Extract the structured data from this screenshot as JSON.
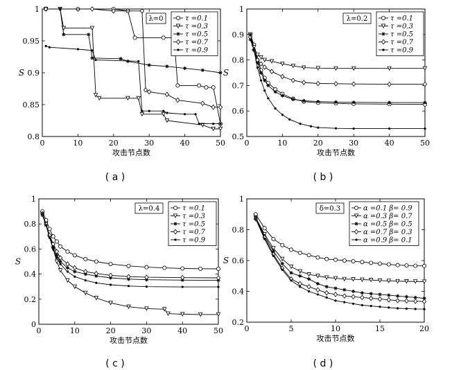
{
  "chart_data": [
    {
      "id": "a",
      "type": "line",
      "caption": "( a )",
      "box_label": "λ=0",
      "xlabel": "攻击节点数",
      "ylabel": "S",
      "xlim": [
        0,
        50
      ],
      "ylim": [
        0.8,
        1
      ],
      "xticks": [
        0,
        10,
        20,
        30,
        40,
        50
      ],
      "yticks": [
        0.8,
        0.85,
        0.9,
        0.95,
        1
      ],
      "ytick_labels": [
        "0.8",
        "0.85",
        "0.9",
        "0.95",
        "1"
      ],
      "legend_position": "top-right",
      "series": [
        {
          "name": "τ =0.1",
          "marker": "circle",
          "x": [
            1,
            10,
            20,
            24,
            26,
            34,
            37,
            38,
            44,
            46,
            48,
            50
          ],
          "y": [
            1,
            1,
            1,
            0.997,
            0.955,
            0.955,
            0.955,
            0.88,
            0.88,
            0.877,
            0.877,
            0.82
          ]
        },
        {
          "name": "τ =0.3",
          "marker": "triangle-down",
          "x": [
            1,
            5,
            6,
            14,
            15,
            16,
            24,
            27,
            28,
            34,
            35,
            45,
            48,
            50
          ],
          "y": [
            1,
            1,
            0.97,
            0.97,
            0.865,
            0.86,
            0.86,
            0.86,
            0.835,
            0.835,
            0.825,
            0.818,
            0.812,
            0.812
          ]
        },
        {
          "name": "τ =0.5",
          "marker": "star",
          "x": [
            1,
            5,
            6,
            13,
            14,
            22,
            24,
            30,
            35,
            40,
            45,
            50
          ],
          "y": [
            1,
            1,
            0.96,
            0.96,
            0.923,
            0.922,
            0.918,
            0.912,
            0.91,
            0.907,
            0.904,
            0.9
          ]
        },
        {
          "name": "τ =0.7",
          "marker": "diamond",
          "x": [
            1,
            14,
            20,
            28,
            29,
            30,
            35,
            38,
            45,
            48,
            50
          ],
          "y": [
            1,
            1,
            0.997,
            0.997,
            0.873,
            0.87,
            0.866,
            0.857,
            0.852,
            0.846,
            0.846
          ]
        },
        {
          "name": "τ =0.9",
          "marker": "dot",
          "x": [
            1,
            2,
            10,
            14,
            15,
            27,
            28,
            30,
            34,
            35,
            40,
            43,
            44,
            48,
            50
          ],
          "y": [
            0.942,
            0.94,
            0.937,
            0.935,
            0.92,
            0.918,
            0.84,
            0.84,
            0.84,
            0.837,
            0.835,
            0.835,
            0.82,
            0.82,
            0.82
          ]
        }
      ]
    },
    {
      "id": "b",
      "type": "line",
      "caption": "( b )",
      "box_label": "λ=0.2",
      "xlabel": "攻击节点数",
      "ylabel": "S",
      "xlim": [
        0,
        50
      ],
      "ylim": [
        0.5,
        1
      ],
      "xticks": [
        0,
        10,
        20,
        30,
        40,
        50
      ],
      "yticks": [
        0.5,
        0.6,
        0.7,
        0.8,
        0.9,
        1
      ],
      "ytick_labels": [
        "0.5",
        "0.6",
        "0.7",
        "0.8",
        "0.9",
        "1"
      ],
      "legend_position": "top-right",
      "series": [
        {
          "name": "τ =0.1",
          "marker": "circle",
          "x": [
            1,
            2,
            3,
            4,
            5,
            6,
            8,
            10,
            13,
            16,
            20,
            25,
            30,
            40,
            50
          ],
          "y": [
            0.9,
            0.86,
            0.8,
            0.76,
            0.73,
            0.71,
            0.685,
            0.667,
            0.648,
            0.637,
            0.632,
            0.63,
            0.628,
            0.627,
            0.626
          ]
        },
        {
          "name": "τ =0.3",
          "marker": "triangle-down",
          "x": [
            1,
            2,
            3,
            4,
            5,
            7,
            10,
            13,
            16,
            20,
            25,
            30,
            40,
            50
          ],
          "y": [
            0.9,
            0.85,
            0.82,
            0.81,
            0.8,
            0.795,
            0.785,
            0.777,
            0.77,
            0.768,
            0.767,
            0.767,
            0.767,
            0.767
          ]
        },
        {
          "name": "τ =0.5",
          "marker": "star",
          "x": [
            1,
            2,
            3,
            4,
            5,
            6,
            8,
            10,
            13,
            16,
            20,
            25,
            30,
            40,
            50
          ],
          "y": [
            0.88,
            0.84,
            0.79,
            0.75,
            0.72,
            0.7,
            0.675,
            0.66,
            0.646,
            0.64,
            0.637,
            0.635,
            0.634,
            0.633,
            0.633
          ]
        },
        {
          "name": "τ =0.7",
          "marker": "diamond",
          "x": [
            1,
            2,
            3,
            4,
            5,
            7,
            10,
            13,
            16,
            20,
            25,
            30,
            40,
            50
          ],
          "y": [
            0.89,
            0.84,
            0.8,
            0.785,
            0.772,
            0.755,
            0.735,
            0.72,
            0.712,
            0.708,
            0.707,
            0.706,
            0.705,
            0.705
          ]
        },
        {
          "name": "τ =0.9",
          "marker": "dot",
          "x": [
            1,
            2,
            3,
            4,
            5,
            6,
            8,
            10,
            12,
            15,
            18,
            20,
            25,
            30,
            40,
            50
          ],
          "y": [
            0.9,
            0.84,
            0.77,
            0.72,
            0.68,
            0.65,
            0.61,
            0.585,
            0.567,
            0.55,
            0.54,
            0.535,
            0.532,
            0.531,
            0.531,
            0.531
          ]
        }
      ]
    },
    {
      "id": "c",
      "type": "line",
      "caption": "( c )",
      "box_label": "λ=0.4",
      "xlabel": "攻击节点数",
      "ylabel": "S",
      "xlim": [
        0,
        50
      ],
      "ylim": [
        0,
        1
      ],
      "xticks": [
        0,
        10,
        20,
        30,
        40,
        50
      ],
      "yticks": [
        0,
        0.2,
        0.4,
        0.6,
        0.8,
        1
      ],
      "ytick_labels": [
        "0",
        "0.2",
        "0.4",
        "0.6",
        "0.8",
        "1"
      ],
      "legend_position": "top-right",
      "series": [
        {
          "name": "τ =0.1",
          "marker": "circle",
          "x": [
            1,
            2,
            3,
            4,
            5,
            6,
            8,
            10,
            13,
            16,
            20,
            25,
            30,
            35,
            40,
            45,
            50
          ],
          "y": [
            0.9,
            0.83,
            0.76,
            0.7,
            0.66,
            0.62,
            0.58,
            0.55,
            0.52,
            0.5,
            0.48,
            0.465,
            0.455,
            0.45,
            0.445,
            0.443,
            0.442
          ]
        },
        {
          "name": "τ =0.3",
          "marker": "triangle-down",
          "x": [
            1,
            2,
            3,
            4,
            5,
            6,
            8,
            10,
            13,
            16,
            20,
            25,
            30,
            35,
            36,
            40,
            45,
            50
          ],
          "y": [
            0.88,
            0.8,
            0.7,
            0.6,
            0.5,
            0.43,
            0.35,
            0.3,
            0.25,
            0.21,
            0.17,
            0.14,
            0.125,
            0.12,
            0.085,
            0.08,
            0.078,
            0.078
          ]
        },
        {
          "name": "τ =0.5",
          "marker": "star",
          "x": [
            1,
            2,
            3,
            4,
            5,
            6,
            8,
            10,
            13,
            16,
            20,
            25,
            30,
            40,
            50
          ],
          "y": [
            0.87,
            0.79,
            0.7,
            0.62,
            0.55,
            0.5,
            0.45,
            0.42,
            0.4,
            0.385,
            0.37,
            0.36,
            0.355,
            0.352,
            0.35
          ]
        },
        {
          "name": "τ =0.7",
          "marker": "diamond",
          "x": [
            1,
            2,
            3,
            4,
            5,
            6,
            8,
            10,
            13,
            16,
            20,
            25,
            30,
            40,
            50
          ],
          "y": [
            0.88,
            0.8,
            0.71,
            0.64,
            0.58,
            0.53,
            0.48,
            0.45,
            0.42,
            0.405,
            0.39,
            0.38,
            0.375,
            0.372,
            0.37
          ]
        },
        {
          "name": "τ =0.9",
          "marker": "dot",
          "x": [
            1,
            2,
            3,
            4,
            5,
            6,
            8,
            10,
            13,
            16,
            20,
            25,
            30,
            40,
            50
          ],
          "y": [
            0.88,
            0.79,
            0.69,
            0.6,
            0.53,
            0.48,
            0.42,
            0.38,
            0.35,
            0.33,
            0.315,
            0.305,
            0.3,
            0.298,
            0.298
          ]
        }
      ]
    },
    {
      "id": "d",
      "type": "line",
      "caption": "( d )",
      "box_label": "δ=0.3",
      "xlabel": "攻击节点数",
      "ylabel": "S",
      "xlim": [
        0,
        20
      ],
      "ylim": [
        0.2,
        1
      ],
      "xticks": [
        0,
        5,
        10,
        15,
        20
      ],
      "yticks": [
        0.2,
        0.4,
        0.6,
        0.8,
        1
      ],
      "ytick_labels": [
        "0.2",
        "0.4",
        "0.6",
        "0.8",
        "1"
      ],
      "legend_position": "top-right",
      "series": [
        {
          "name": "α =0.1 β= 0.9",
          "marker": "circle",
          "x": [
            1,
            2,
            3,
            4,
            5,
            6,
            7,
            8,
            9,
            10,
            11,
            12,
            13,
            14,
            15,
            16,
            17,
            18,
            19,
            20
          ],
          "y": [
            0.9,
            0.81,
            0.74,
            0.7,
            0.67,
            0.65,
            0.635,
            0.62,
            0.61,
            0.605,
            0.6,
            0.595,
            0.59,
            0.585,
            0.58,
            0.575,
            0.57,
            0.568,
            0.566,
            0.565
          ]
        },
        {
          "name": "α =0.3 β= 0.7",
          "marker": "triangle-down",
          "x": [
            1,
            2,
            3,
            4,
            5,
            6,
            7,
            8,
            9,
            10,
            11,
            12,
            13,
            14,
            15,
            16,
            17,
            18,
            19,
            20
          ],
          "y": [
            0.88,
            0.77,
            0.68,
            0.61,
            0.56,
            0.53,
            0.51,
            0.5,
            0.49,
            0.485,
            0.48,
            0.478,
            0.476,
            0.474,
            0.47,
            0.468,
            0.466,
            0.465,
            0.464,
            0.463
          ]
        },
        {
          "name": "α =0.5 β= 0.5",
          "marker": "star",
          "x": [
            1,
            2,
            3,
            4,
            5,
            6,
            7,
            8,
            9,
            10,
            11,
            12,
            13,
            14,
            15,
            16,
            17,
            18,
            19,
            20
          ],
          "y": [
            0.88,
            0.76,
            0.66,
            0.58,
            0.52,
            0.5,
            0.48,
            0.45,
            0.43,
            0.42,
            0.41,
            0.4,
            0.39,
            0.385,
            0.38,
            0.375,
            0.37,
            0.365,
            0.36,
            0.355
          ]
        },
        {
          "name": "α =0.7 β= 0.3",
          "marker": "diamond",
          "x": [
            1,
            2,
            3,
            4,
            5,
            6,
            7,
            8,
            9,
            10,
            11,
            12,
            13,
            14,
            15,
            16,
            17,
            18,
            19,
            20
          ],
          "y": [
            0.87,
            0.75,
            0.64,
            0.55,
            0.48,
            0.45,
            0.43,
            0.41,
            0.39,
            0.38,
            0.37,
            0.365,
            0.36,
            0.355,
            0.35,
            0.345,
            0.34,
            0.338,
            0.336,
            0.334
          ]
        },
        {
          "name": "α =0.9 β= 0.1",
          "marker": "dot",
          "x": [
            1,
            2,
            3,
            4,
            5,
            6,
            7,
            8,
            9,
            10,
            11,
            12,
            13,
            14,
            15,
            16,
            17,
            18,
            19,
            20
          ],
          "y": [
            0.87,
            0.74,
            0.63,
            0.54,
            0.47,
            0.43,
            0.4,
            0.38,
            0.36,
            0.34,
            0.33,
            0.32,
            0.31,
            0.305,
            0.3,
            0.295,
            0.29,
            0.288,
            0.286,
            0.285
          ]
        }
      ]
    }
  ]
}
